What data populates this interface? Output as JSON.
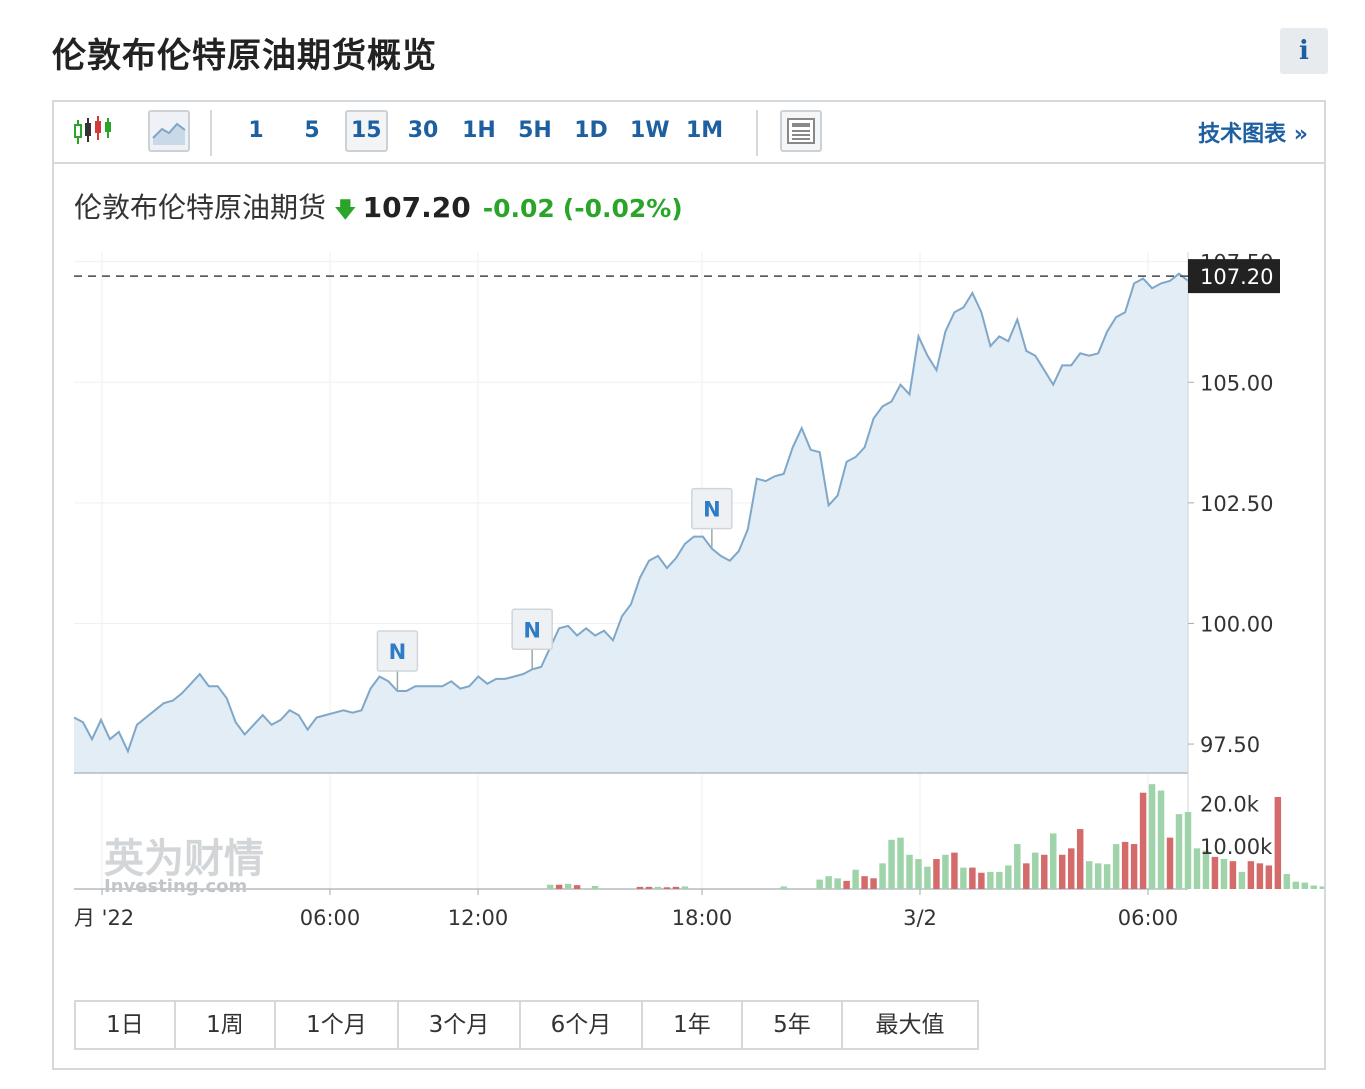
{
  "page": {
    "title": "伦敦布伦特原油期货概览",
    "info_label": "i"
  },
  "toolbar": {
    "timeframes": [
      "1",
      "5",
      "15",
      "30",
      "1H",
      "5H",
      "1D",
      "1W",
      "1M"
    ],
    "active_timeframe": "15",
    "tech_link": "技术图表 »"
  },
  "quote": {
    "name": "伦敦布伦特原油期货",
    "direction": "down",
    "price": "107.20",
    "change": "-0.02",
    "change_pct": "(-0.02%)"
  },
  "colors": {
    "accent": "#1d5fa0",
    "up": "#2aa52a",
    "price_line": "#7fa7c9",
    "area_fill": "#e3edf5",
    "vol_up": "#9fd4aa",
    "vol_down": "#d46a6a",
    "label_bg": "#222222"
  },
  "watermark": {
    "brand_cn": "英为财情",
    "brand_en": "Investing.com"
  },
  "chart_data": {
    "type": "area",
    "title": "",
    "xlabel": "",
    "ylabel": "",
    "ylim": [
      96.9,
      107.7
    ],
    "y_ticks": [
      "107.50",
      "105.00",
      "102.50",
      "100.00",
      "97.50"
    ],
    "x_ticks": [
      "月 '22",
      "06:00",
      "12:00",
      "18:00",
      "3/2",
      "06:00"
    ],
    "last_price": 107.2,
    "last_price_label": "107.20",
    "grid": true,
    "news_markers": [
      {
        "label": "N",
        "index": 36
      },
      {
        "label": "N",
        "index": 51
      },
      {
        "label": "N",
        "index": 71
      }
    ],
    "series": [
      {
        "values": [
          98.05,
          97.95,
          97.6,
          98.0,
          97.6,
          97.75,
          97.35,
          97.9,
          98.05,
          98.2,
          98.35,
          98.4,
          98.55,
          98.75,
          98.95,
          98.7,
          98.7,
          98.45,
          97.95,
          97.7,
          97.9,
          98.1,
          97.9,
          98.0,
          98.2,
          98.1,
          97.8,
          98.05,
          98.1,
          98.15,
          98.2,
          98.15,
          98.2,
          98.65,
          98.9,
          98.8,
          98.6,
          98.6,
          98.7,
          98.7,
          98.7,
          98.7,
          98.8,
          98.65,
          98.7,
          98.9,
          98.75,
          98.85,
          98.85,
          98.9,
          98.95,
          99.05,
          99.1,
          99.5,
          99.9,
          99.95,
          99.75,
          99.9,
          99.75,
          99.85,
          99.65,
          100.15,
          100.4,
          100.95,
          101.3,
          101.4,
          101.15,
          101.35,
          101.65,
          101.8,
          101.8,
          101.55,
          101.4,
          101.3,
          101.5,
          101.95,
          103.0,
          102.95,
          103.05,
          103.1,
          103.65,
          104.05,
          103.6,
          103.55,
          102.45,
          102.65,
          103.35,
          103.45,
          103.65,
          104.25,
          104.5,
          104.6,
          104.95,
          104.75,
          105.95,
          105.55,
          105.25,
          106.05,
          106.45,
          106.55,
          106.85,
          106.45,
          105.75,
          105.95,
          105.85,
          106.3,
          105.65,
          105.55,
          105.25,
          104.95,
          105.35,
          105.35,
          105.6,
          105.55,
          105.6,
          106.05,
          106.35,
          106.45,
          107.05,
          107.15,
          106.95,
          107.05,
          107.1,
          107.25,
          107.1
        ]
      }
    ],
    "volume": {
      "y_ticks": [
        "20.0k",
        "10.00k"
      ],
      "ymax": 25000,
      "values": [
        0,
        0,
        0,
        0,
        0,
        0,
        0,
        0,
        0,
        0,
        0,
        0,
        0,
        0,
        0,
        0,
        0,
        0,
        0,
        0,
        0,
        0,
        0,
        0,
        0,
        0,
        0,
        0,
        0,
        0,
        0,
        0,
        0,
        0,
        0,
        0,
        0,
        0,
        0,
        0,
        0,
        0,
        0,
        0,
        0,
        0,
        0,
        0,
        0,
        0,
        0,
        0,
        0,
        0,
        0,
        0,
        0,
        0,
        0,
        0,
        0,
        0,
        0,
        0,
        0,
        0,
        0,
        0,
        0,
        0,
        0,
        0,
        0,
        0,
        0,
        0,
        0,
        0,
        0,
        0,
        0,
        0,
        0,
        0,
        0,
        0,
        0,
        0,
        0,
        0,
        0,
        0,
        0,
        0,
        0,
        0,
        0,
        0,
        0,
        0,
        0,
        0,
        0,
        0,
        0,
        0,
        0,
        0,
        0,
        0,
        0,
        0,
        0,
        0,
        0,
        0,
        0,
        0,
        0,
        0,
        0,
        0,
        0,
        0,
        0
      ],
      "bars": [
        [
          53,
          1000,
          1
        ],
        [
          54,
          1000,
          0
        ],
        [
          55,
          1200,
          1
        ],
        [
          56,
          900,
          0
        ],
        [
          58,
          700,
          1
        ],
        [
          63,
          500,
          0
        ],
        [
          64,
          500,
          0
        ],
        [
          65,
          500,
          1
        ],
        [
          66,
          400,
          0
        ],
        [
          67,
          500,
          0
        ],
        [
          68,
          600,
          1
        ],
        [
          79,
          600,
          1
        ],
        [
          83,
          2200,
          1
        ],
        [
          84,
          3000,
          1
        ],
        [
          85,
          2500,
          1
        ],
        [
          86,
          1900,
          0
        ],
        [
          87,
          4500,
          1
        ],
        [
          88,
          3000,
          0
        ],
        [
          89,
          2500,
          0
        ],
        [
          90,
          6000,
          1
        ],
        [
          91,
          11500,
          1
        ],
        [
          92,
          12000,
          1
        ],
        [
          93,
          8000,
          1
        ],
        [
          94,
          7000,
          1
        ],
        [
          95,
          5200,
          1
        ],
        [
          96,
          7000,
          0
        ],
        [
          97,
          8000,
          1
        ],
        [
          98,
          8500,
          0
        ],
        [
          99,
          5000,
          1
        ],
        [
          100,
          5000,
          0
        ],
        [
          101,
          3800,
          0
        ],
        [
          102,
          4000,
          1
        ],
        [
          103,
          4000,
          1
        ],
        [
          104,
          5500,
          1
        ],
        [
          105,
          10500,
          1
        ],
        [
          106,
          6000,
          0
        ],
        [
          107,
          8500,
          1
        ],
        [
          108,
          8000,
          0
        ],
        [
          109,
          13000,
          1
        ],
        [
          110,
          8000,
          0
        ],
        [
          111,
          9500,
          0
        ],
        [
          112,
          14000,
          0
        ],
        [
          113,
          6500,
          1
        ],
        [
          114,
          6000,
          1
        ],
        [
          115,
          5800,
          1
        ],
        [
          116,
          10500,
          1
        ],
        [
          117,
          11000,
          0
        ],
        [
          118,
          10500,
          0
        ],
        [
          119,
          22500,
          0
        ],
        [
          120,
          24500,
          1
        ],
        [
          121,
          23000,
          1
        ],
        [
          122,
          12000,
          0
        ],
        [
          123,
          17500,
          1
        ],
        [
          124,
          18000,
          1
        ],
        [
          125,
          9500,
          1
        ],
        [
          126,
          9000,
          1
        ],
        [
          127,
          7500,
          0
        ],
        [
          128,
          7000,
          1
        ],
        [
          129,
          6500,
          0
        ],
        [
          130,
          4000,
          1
        ],
        [
          131,
          6500,
          0
        ],
        [
          132,
          6000,
          0
        ],
        [
          133,
          5500,
          0
        ],
        [
          134,
          21500,
          0
        ],
        [
          135,
          3500,
          1
        ],
        [
          136,
          1700,
          1
        ],
        [
          137,
          1500,
          1
        ],
        [
          138,
          800,
          1
        ],
        [
          139,
          600,
          1
        ],
        [
          140,
          1500,
          1
        ],
        [
          141,
          1200,
          1
        ],
        [
          142,
          1200,
          1
        ],
        [
          143,
          2100,
          1
        ],
        [
          144,
          1300,
          1
        ],
        [
          146,
          600,
          1
        ]
      ]
    }
  },
  "ranges": [
    "1日",
    "1周",
    "1个月",
    "3个月",
    "6个月",
    "1年",
    "5年",
    "最大值"
  ]
}
